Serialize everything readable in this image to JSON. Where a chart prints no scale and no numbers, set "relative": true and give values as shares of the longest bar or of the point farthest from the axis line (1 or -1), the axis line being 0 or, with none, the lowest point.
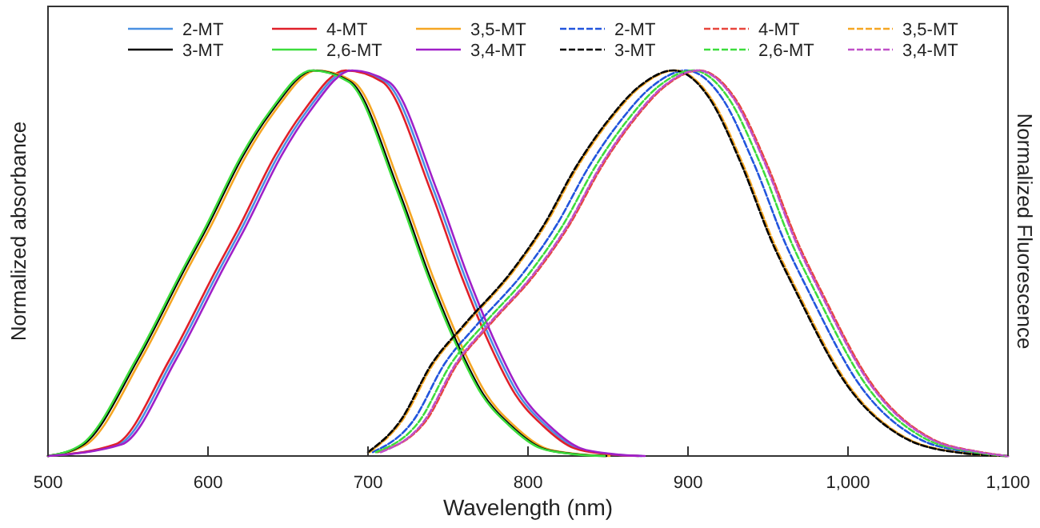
{
  "chart_data": {
    "type": "line",
    "xlabel": "Wavelength (nm)",
    "ylabel": "Normalized absorbance",
    "y2label": "Normalized Fluorescence",
    "relative": true,
    "xlim": [
      500,
      1100
    ],
    "xticks": [
      500,
      600,
      700,
      800,
      900,
      {
        "value": 1000,
        "label": "1,000"
      },
      {
        "value": 1100,
        "label": "1,100"
      }
    ],
    "legend": "top",
    "grid": false,
    "marker": "none",
    "series": [
      {
        "name": "2-MT",
        "color": "#4a90e2",
        "line_style": "solid",
        "x": [
          500,
          544,
          578,
          608,
          621,
          644,
          661,
          688,
          711,
          741,
          761,
          778,
          794,
          811,
          831,
          851,
          871
        ],
        "values": [
          0,
          0.03,
          0.25,
          0.49,
          0.59,
          0.78,
          0.89,
          1,
          0.97,
          0.69,
          0.46,
          0.29,
          0.16,
          0.08,
          0.02,
          0.005,
          0
        ]
      },
      {
        "name": "4-MT",
        "color": "#e0202a",
        "line_style": "solid",
        "x": [
          500,
          542,
          576,
          606,
          619,
          642,
          659,
          686,
          709,
          739,
          759,
          776,
          792,
          809,
          829,
          849,
          869
        ],
        "values": [
          0,
          0.03,
          0.25,
          0.49,
          0.59,
          0.78,
          0.89,
          1,
          0.97,
          0.69,
          0.46,
          0.29,
          0.16,
          0.08,
          0.02,
          0.005,
          0
        ]
      },
      {
        "name": "3,5-MT",
        "color": "#f5a623",
        "line_style": "solid",
        "x": [
          500,
          524,
          558,
          588,
          601,
          624,
          641,
          668,
          691,
          721,
          741,
          758,
          774,
          791,
          811,
          831,
          851
        ],
        "values": [
          0,
          0.03,
          0.25,
          0.49,
          0.59,
          0.78,
          0.89,
          1,
          0.97,
          0.69,
          0.46,
          0.29,
          0.16,
          0.08,
          0.02,
          0.005,
          0
        ]
      },
      {
        "name": "2-MT",
        "color": "#2255dd",
        "line_style": "dashed",
        "x": [
          703,
          728,
          748,
          768,
          798,
          818,
          838,
          858,
          878,
          899,
          921,
          941,
          961,
          975,
          1008,
          1042,
          1075,
          1100
        ],
        "values": [
          0.01,
          0.09,
          0.24,
          0.34,
          0.48,
          0.6,
          0.75,
          0.87,
          0.96,
          1,
          0.93,
          0.76,
          0.55,
          0.43,
          0.18,
          0.05,
          0.01,
          0
        ]
      },
      {
        "name": "4-MT",
        "color": "#e8463c",
        "line_style": "dashed",
        "x": [
          706,
          736,
          756,
          776,
          806,
          826,
          846,
          866,
          886,
          907,
          929,
          949,
          969,
          983,
          1016,
          1050,
          1083,
          1100
        ],
        "values": [
          0.01,
          0.09,
          0.24,
          0.34,
          0.48,
          0.6,
          0.75,
          0.87,
          0.96,
          1,
          0.93,
          0.76,
          0.55,
          0.43,
          0.18,
          0.05,
          0.01,
          0
        ]
      },
      {
        "name": "3,5-MT",
        "color": "#f5a623",
        "line_style": "dashed",
        "x": [
          701,
          721,
          741,
          761,
          791,
          811,
          831,
          851,
          871,
          892,
          914,
          934,
          954,
          968,
          1001,
          1035,
          1068,
          1100
        ],
        "values": [
          0.01,
          0.09,
          0.24,
          0.34,
          0.48,
          0.6,
          0.75,
          0.87,
          0.96,
          1,
          0.93,
          0.76,
          0.55,
          0.43,
          0.18,
          0.05,
          0.01,
          0
        ]
      },
      {
        "name": "3-MT",
        "color": "#000000",
        "line_style": "solid",
        "x": [
          500,
          522,
          556,
          586,
          599,
          622,
          639,
          666,
          689,
          719,
          739,
          756,
          772,
          789,
          809,
          829,
          849
        ],
        "values": [
          0,
          0.03,
          0.25,
          0.49,
          0.59,
          0.78,
          0.89,
          1,
          0.97,
          0.69,
          0.46,
          0.29,
          0.16,
          0.08,
          0.02,
          0.005,
          0
        ]
      },
      {
        "name": "2,6-MT",
        "color": "#3ddc3d",
        "line_style": "solid",
        "x": [
          500,
          521,
          555,
          585,
          598,
          621,
          638,
          665,
          688,
          718,
          738,
          755,
          771,
          788,
          808,
          828,
          848
        ],
        "values": [
          0,
          0.03,
          0.25,
          0.49,
          0.59,
          0.78,
          0.89,
          1,
          0.97,
          0.69,
          0.46,
          0.29,
          0.16,
          0.08,
          0.02,
          0.005,
          0
        ]
      },
      {
        "name": "3,4-MT",
        "color": "#a020c8",
        "line_style": "solid",
        "x": [
          500,
          546,
          580,
          610,
          623,
          646,
          663,
          690,
          713,
          743,
          763,
          780,
          796,
          813,
          833,
          853,
          873
        ],
        "values": [
          0,
          0.03,
          0.25,
          0.49,
          0.59,
          0.78,
          0.89,
          1,
          0.97,
          0.69,
          0.46,
          0.29,
          0.16,
          0.08,
          0.02,
          0.005,
          0
        ]
      },
      {
        "name": "3-MT",
        "color": "#000000",
        "line_style": "dashed",
        "x": [
          700,
          720,
          740,
          760,
          790,
          810,
          830,
          850,
          870,
          891,
          913,
          933,
          953,
          967,
          1000,
          1034,
          1067,
          1100
        ],
        "values": [
          0.01,
          0.09,
          0.24,
          0.34,
          0.48,
          0.6,
          0.75,
          0.87,
          0.96,
          1,
          0.93,
          0.76,
          0.55,
          0.43,
          0.18,
          0.05,
          0.01,
          0
        ]
      },
      {
        "name": "2,6-MT",
        "color": "#3ddc3d",
        "line_style": "dashed",
        "x": [
          705,
          732,
          752,
          772,
          802,
          822,
          842,
          862,
          882,
          903,
          925,
          945,
          965,
          979,
          1012,
          1046,
          1079,
          1100
        ],
        "values": [
          0.01,
          0.09,
          0.24,
          0.34,
          0.48,
          0.6,
          0.75,
          0.87,
          0.96,
          1,
          0.93,
          0.76,
          0.55,
          0.43,
          0.18,
          0.05,
          0.01,
          0
        ]
      },
      {
        "name": "3,4-MT",
        "color": "#c050c8",
        "line_style": "dashed",
        "x": [
          708,
          735,
          755,
          775,
          805,
          825,
          845,
          865,
          885,
          906,
          928,
          948,
          968,
          982,
          1015,
          1049,
          1082,
          1100
        ],
        "values": [
          0.01,
          0.09,
          0.24,
          0.34,
          0.48,
          0.6,
          0.75,
          0.87,
          0.96,
          1,
          0.93,
          0.76,
          0.55,
          0.43,
          0.18,
          0.05,
          0.01,
          0
        ]
      }
    ]
  }
}
